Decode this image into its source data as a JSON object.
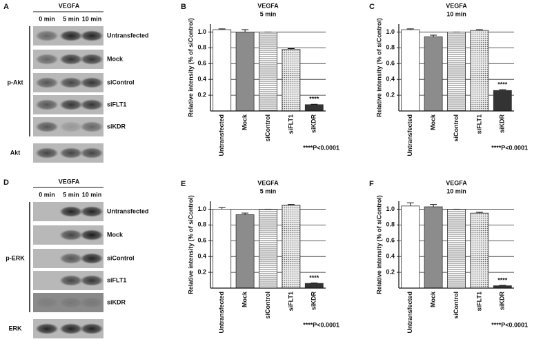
{
  "blots": [
    {
      "letter": "A",
      "header": "VEGFA",
      "lanes": [
        "0 min",
        "5 min",
        "10 min"
      ],
      "rows": [
        "Untransfected",
        "Mock",
        "siControl",
        "siFLT1",
        "siKDR"
      ],
      "group": "p-Akt",
      "loading": "Akt"
    },
    {
      "letter": "D",
      "header": "VEGFA",
      "lanes": [
        "0 min",
        "5 min",
        "10 min"
      ],
      "rows": [
        "Untransfected",
        "Mock",
        "siControl",
        "siFLT1",
        "siKDR"
      ],
      "group": "p-ERK",
      "loading": "ERK"
    }
  ],
  "chart_data": [
    {
      "type": "bar",
      "letter": "B",
      "title": "VEGFA",
      "subtitle": "5 min",
      "ylabel": "Relative intensity (% of siControl)",
      "categories": [
        "Untransfected",
        "Mock",
        "siControl",
        "siFLT1",
        "siKDR"
      ],
      "values": [
        1.03,
        1.0,
        1.0,
        0.78,
        0.08
      ],
      "errors": [
        0.01,
        0.03,
        0,
        0.01,
        0.005
      ],
      "colors": [
        "#ffffff",
        "#8c8c8c",
        "#ffffff",
        "#ffffff",
        "#333333"
      ],
      "patterns": [
        "solid",
        "solid",
        "stripes",
        "dots",
        "solid"
      ],
      "ylim": [
        0,
        1.1
      ],
      "yticks": [
        0.2,
        0.4,
        0.6,
        0.8,
        {
          "value": 1,
          "label": "1.0"
        }
      ],
      "grid": true,
      "star": "****",
      "note": "****P<0.0001"
    },
    {
      "type": "bar",
      "letter": "C",
      "title": "VEGFA",
      "subtitle": "10 min",
      "ylabel": "Relative intensity (% of siControl)",
      "categories": [
        "Untransfected",
        "Mock",
        "siControl",
        "siFLT1",
        "siKDR"
      ],
      "values": [
        1.03,
        0.94,
        1.0,
        1.02,
        0.26
      ],
      "errors": [
        0.01,
        0.02,
        0,
        0.01,
        0.01
      ],
      "colors": [
        "#ffffff",
        "#8c8c8c",
        "#ffffff",
        "#ffffff",
        "#333333"
      ],
      "patterns": [
        "solid",
        "solid",
        "stripes",
        "dots",
        "solid"
      ],
      "ylim": [
        0,
        1.1
      ],
      "yticks": [
        0.2,
        0.4,
        0.6,
        0.8,
        {
          "value": 1,
          "label": "1.0"
        }
      ],
      "grid": true,
      "star": "****",
      "note": "****P<0.0001"
    },
    {
      "type": "bar",
      "letter": "E",
      "title": "VEGFA",
      "subtitle": "5 min",
      "ylabel": "Relative intensity (% of siControl)",
      "categories": [
        "Untransfected",
        "Mock",
        "siControl",
        "siFLT1",
        "siKDR"
      ],
      "values": [
        1.0,
        0.93,
        1.0,
        1.05,
        0.06
      ],
      "errors": [
        0.02,
        0.02,
        0,
        0.01,
        0.005
      ],
      "colors": [
        "#ffffff",
        "#8c8c8c",
        "#ffffff",
        "#ffffff",
        "#333333"
      ],
      "patterns": [
        "solid",
        "solid",
        "stripes",
        "dots",
        "solid"
      ],
      "ylim": [
        0,
        1.1
      ],
      "yticks": [
        0.2,
        0.4,
        0.6,
        0.8,
        {
          "value": 1,
          "label": "1.0"
        }
      ],
      "grid": true,
      "star": "****",
      "note": "****P<0.0001"
    },
    {
      "type": "bar",
      "letter": "F",
      "title": "VEGFA",
      "subtitle": "10 min",
      "ylabel": "Relative intensity (% of siControl)",
      "categories": [
        "Untransfected",
        "Mock",
        "siControl",
        "siFLT1",
        "siKDR"
      ],
      "values": [
        1.04,
        1.03,
        1.0,
        0.95,
        0.03
      ],
      "errors": [
        0.04,
        0.03,
        0,
        0.01,
        0.005
      ],
      "colors": [
        "#ffffff",
        "#8c8c8c",
        "#ffffff",
        "#ffffff",
        "#333333"
      ],
      "patterns": [
        "solid",
        "solid",
        "stripes",
        "dots",
        "solid"
      ],
      "ylim": [
        0,
        1.1
      ],
      "yticks": [
        0.2,
        0.4,
        0.6,
        0.8,
        {
          "value": 1,
          "label": "1.0"
        }
      ],
      "grid": true,
      "star": "****",
      "note": "****P<0.0001"
    }
  ]
}
